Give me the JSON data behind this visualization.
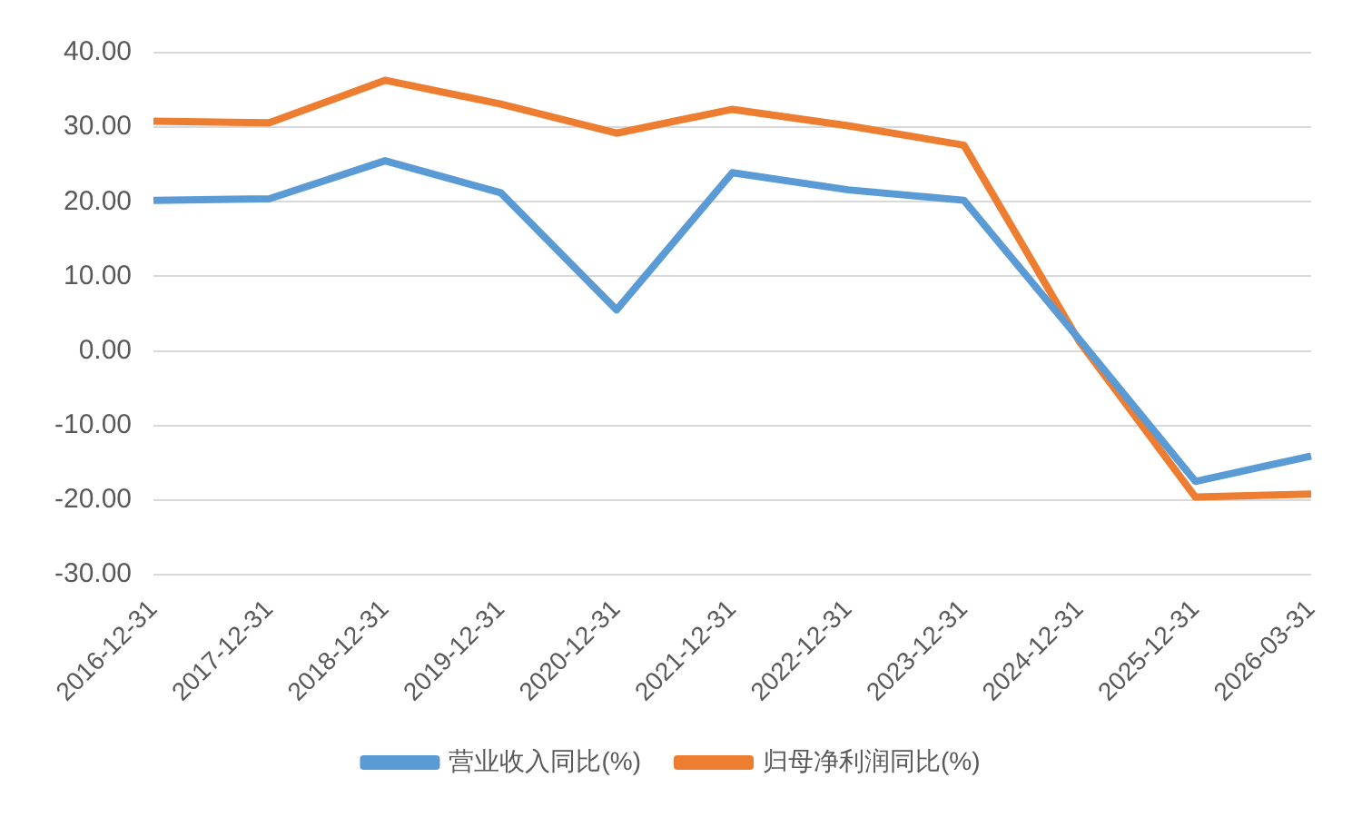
{
  "chart_data": {
    "type": "line",
    "categories": [
      "2016-12-31",
      "2017-12-31",
      "2018-12-31",
      "2019-12-31",
      "2020-12-31",
      "2021-12-31",
      "2022-12-31",
      "2023-12-31",
      "2024-12-31",
      "2025-12-31",
      "2026-03-31"
    ],
    "series": [
      {
        "name": "营业收入同比(%)",
        "color": "#5b9bd5",
        "values": [
          20.2,
          20.4,
          25.5,
          21.2,
          5.5,
          23.9,
          21.6,
          20.2,
          1.5,
          -17.5,
          -14.1
        ]
      },
      {
        "name": "归母净利润同比(%)",
        "color": "#ed7d31",
        "values": [
          30.8,
          30.6,
          36.3,
          33.1,
          29.2,
          32.4,
          30.2,
          27.6,
          1.2,
          -19.6,
          -19.2
        ]
      }
    ],
    "ylim": [
      -30,
      40
    ],
    "yticks": [
      {
        "value": -30,
        "label": "-30.00"
      },
      {
        "value": -20,
        "label": "-20.00"
      },
      {
        "value": -10,
        "label": "-10.00"
      },
      {
        "value": 0,
        "label": "0.00"
      },
      {
        "value": 10,
        "label": "10.00"
      },
      {
        "value": 20,
        "label": "20.00"
      },
      {
        "value": 30,
        "label": "30.00"
      },
      {
        "value": 40,
        "label": "40.00"
      }
    ],
    "grid": "y",
    "legend": "bottom",
    "marker": "none",
    "line_style": "solid"
  }
}
